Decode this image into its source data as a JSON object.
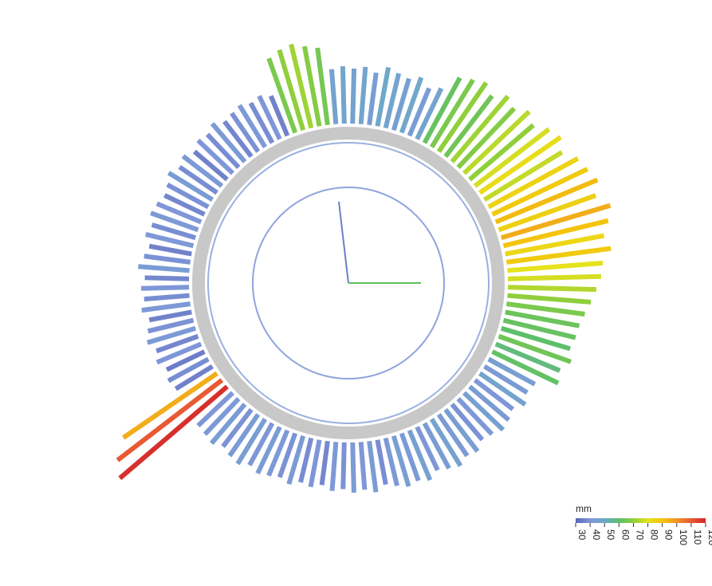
{
  "chart_data": {
    "type": "radial-bar",
    "values": [
      46,
      48,
      44,
      50,
      47,
      45,
      49,
      43,
      47,
      62,
      66,
      70,
      64,
      72,
      68,
      75,
      70,
      78,
      82,
      76,
      85,
      88,
      92,
      86,
      95,
      90,
      84,
      88,
      80,
      78,
      74,
      70,
      66,
      63,
      62,
      60,
      64,
      58,
      61,
      44,
      42,
      46,
      40,
      43,
      45,
      41,
      39,
      44,
      42,
      46,
      43,
      40,
      45,
      42,
      44,
      41,
      38,
      43,
      40,
      42,
      39,
      41,
      37,
      40,
      38,
      42,
      39,
      41,
      43,
      40,
      44,
      42,
      39,
      43,
      41,
      40,
      118,
      110,
      95,
      36,
      38,
      35,
      40,
      37,
      42,
      39,
      36,
      41,
      38,
      40,
      37,
      43,
      39,
      36,
      41,
      38,
      42,
      40,
      37,
      39,
      43,
      38,
      41,
      36,
      40,
      38,
      42,
      37,
      39,
      41,
      38,
      40,
      36,
      66,
      70,
      72,
      68,
      65,
      46,
      48
    ],
    "colorbar": {
      "label": "mm",
      "lim": [
        30,
        120
      ],
      "ticks": [
        30,
        40,
        50,
        60,
        70,
        80,
        90,
        100,
        110,
        120
      ],
      "colors": [
        "#5b63b8",
        "#7f97d8",
        "#6fa9c9",
        "#5dbf6a",
        "#8fcf3c",
        "#e6e21c",
        "#f4c40c",
        "#f0952a",
        "#e85a33",
        "#d3262a"
      ]
    }
  }
}
